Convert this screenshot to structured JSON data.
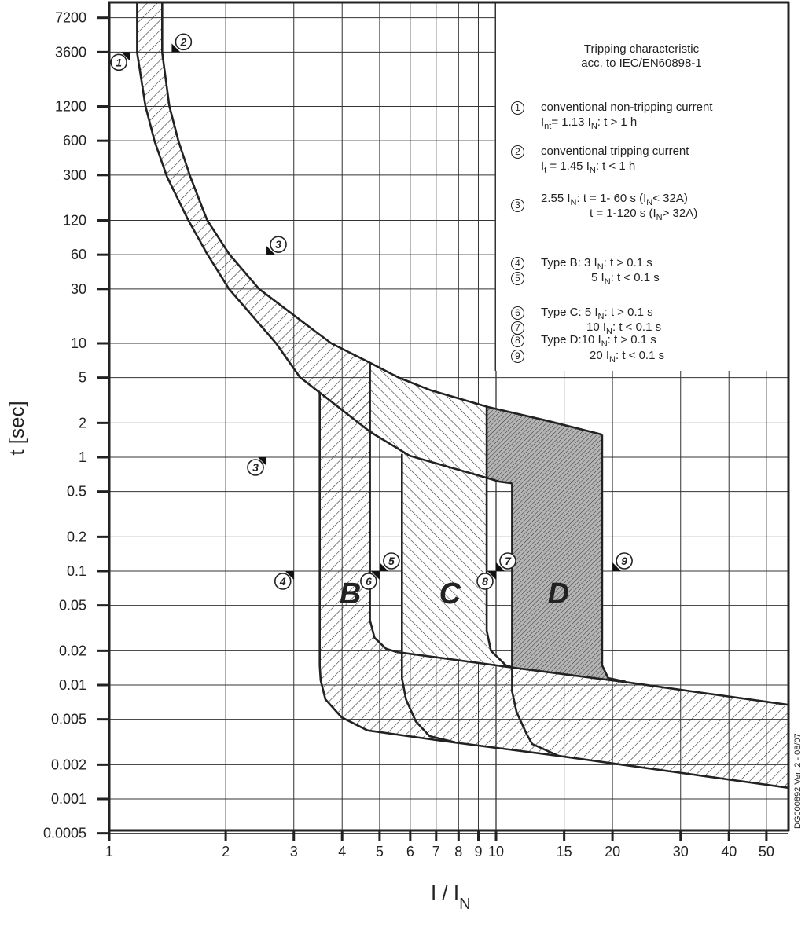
{
  "chart_data": {
    "type": "area",
    "x_scale": "log",
    "y_scale": "log",
    "xlabel": "I / I",
    "xlabel_sub": "N",
    "ylabel": "t [sec]",
    "xlim": [
      1,
      57
    ],
    "ylim": [
      0.0004,
      10000
    ],
    "grid": true,
    "x_ticks": [
      {
        "v": 1,
        "label": "1"
      },
      {
        "v": 2,
        "label": "2"
      },
      {
        "v": 3,
        "label": "3"
      },
      {
        "v": 4,
        "label": "4"
      },
      {
        "v": 5,
        "label": "5"
      },
      {
        "v": 6,
        "label": "6"
      },
      {
        "v": 7,
        "label": "7"
      },
      {
        "v": 8,
        "label": "8"
      },
      {
        "v": 9,
        "label": "9"
      },
      {
        "v": 10,
        "label": "10"
      },
      {
        "v": 15,
        "label": "15"
      },
      {
        "v": 20,
        "label": "20"
      },
      {
        "v": 30,
        "label": "30"
      },
      {
        "v": 40,
        "label": "40"
      },
      {
        "v": 50,
        "label": "50"
      }
    ],
    "y_ticks": [
      {
        "v": 7200,
        "label": "7200"
      },
      {
        "v": 3600,
        "label": "3600"
      },
      {
        "v": 1200,
        "label": "1200"
      },
      {
        "v": 600,
        "label": "600"
      },
      {
        "v": 300,
        "label": "300"
      },
      {
        "v": 120,
        "label": "120"
      },
      {
        "v": 60,
        "label": "60"
      },
      {
        "v": 30,
        "label": "30"
      },
      {
        "v": 10,
        "label": "10"
      },
      {
        "v": 5,
        "label": "5"
      },
      {
        "v": 2,
        "label": "2"
      },
      {
        "v": 1,
        "label": "1"
      },
      {
        "v": 0.5,
        "label": "0.5"
      },
      {
        "v": 0.2,
        "label": "0.2"
      },
      {
        "v": 0.1,
        "label": "0.1"
      },
      {
        "v": 0.05,
        "label": "0.05"
      },
      {
        "v": 0.02,
        "label": "0.02"
      },
      {
        "v": 0.01,
        "label": "0.01"
      },
      {
        "v": 0.005,
        "label": "0.005"
      },
      {
        "v": 0.002,
        "label": "0.002"
      },
      {
        "v": 0.001,
        "label": "0.001"
      },
      {
        "v": 0.0005,
        "label": "0.0005"
      }
    ],
    "regions": [
      {
        "name": "thermal-band",
        "pattern": "fwd",
        "points": [
          [
            1.18,
            12000
          ],
          [
            1.18,
            3560
          ],
          [
            1.24,
            1210
          ],
          [
            1.31,
            592
          ],
          [
            1.41,
            290
          ],
          [
            1.6,
            121
          ],
          [
            1.79,
            61
          ],
          [
            2.04,
            30
          ],
          [
            2.7,
            10
          ],
          [
            3.11,
            5.05
          ],
          [
            4.74,
            1.66
          ],
          [
            5.98,
            1.03
          ],
          [
            9.46,
            0.66
          ],
          [
            9.55,
            2.76
          ],
          [
            6.79,
            3.86
          ],
          [
            4.74,
            6.7
          ],
          [
            3.75,
            10
          ],
          [
            3.37,
            13.1
          ],
          [
            2.44,
            30
          ],
          [
            2.04,
            61
          ],
          [
            1.79,
            121
          ],
          [
            1.62,
            290
          ],
          [
            1.51,
            592
          ],
          [
            1.43,
            1210
          ],
          [
            1.37,
            3560
          ],
          [
            1.37,
            12000
          ]
        ]
      },
      {
        "name": "type-b-and-magnetic-band",
        "pattern": "fwd",
        "points": [
          [
            3.5,
            3.68
          ],
          [
            4.72,
            3.68
          ],
          [
            4.72,
            0.037
          ],
          [
            4.85,
            0.026
          ],
          [
            5.2,
            0.0208
          ],
          [
            5.53,
            0.0195
          ],
          [
            11.1,
            0.0142
          ],
          [
            21.2,
            0.0107
          ],
          [
            57.1,
            0.0067
          ],
          [
            57.1,
            0.00125
          ],
          [
            14.5,
            0.00239
          ],
          [
            7.25,
            0.00324
          ],
          [
            4.65,
            0.004
          ],
          [
            3.99,
            0.0052
          ],
          [
            3.62,
            0.0075
          ],
          [
            3.52,
            0.011
          ],
          [
            3.5,
            0.0149
          ]
        ]
      },
      {
        "name": "type-c-region",
        "pattern": "back",
        "points": [
          [
            4.72,
            6.7
          ],
          [
            5.6,
            5.0
          ],
          [
            6.79,
            3.86
          ],
          [
            9.46,
            2.78
          ],
          [
            9.46,
            0.03
          ],
          [
            9.7,
            0.02
          ],
          [
            10.6,
            0.0149
          ],
          [
            11.1,
            0.0142
          ],
          [
            5.71,
            0.0193
          ],
          [
            5.71,
            1.07
          ],
          [
            4.74,
            1.66
          ]
        ]
      },
      {
        "name": "type-d-region",
        "pattern": "dense",
        "points": [
          [
            9.46,
            2.78
          ],
          [
            13.5,
            2.1
          ],
          [
            18.8,
            1.58
          ],
          [
            18.8,
            0.0149
          ],
          [
            19.5,
            0.0115
          ],
          [
            21.2,
            0.0107
          ],
          [
            11.0,
            0.0142
          ],
          [
            11.0,
            0.59
          ],
          [
            9.46,
            0.66
          ]
        ]
      }
    ],
    "curves": [
      {
        "name": "thermal-lower-curve",
        "points": [
          [
            1.18,
            12000
          ],
          [
            1.18,
            3560
          ],
          [
            1.24,
            1210
          ],
          [
            1.31,
            592
          ],
          [
            1.41,
            290
          ],
          [
            1.6,
            121
          ],
          [
            1.79,
            61
          ],
          [
            2.04,
            30
          ],
          [
            2.7,
            10
          ],
          [
            3.11,
            5.05
          ],
          [
            4.74,
            1.66
          ],
          [
            5.98,
            1.03
          ],
          [
            9.46,
            0.66
          ],
          [
            10.2,
            0.61
          ],
          [
            11.0,
            0.59
          ]
        ]
      },
      {
        "name": "thermal-upper-curve",
        "points": [
          [
            1.37,
            12000
          ],
          [
            1.37,
            3560
          ],
          [
            1.43,
            1210
          ],
          [
            1.51,
            592
          ],
          [
            1.62,
            290
          ],
          [
            1.79,
            121
          ],
          [
            2.04,
            61
          ],
          [
            2.44,
            30
          ],
          [
            3.37,
            13.1
          ],
          [
            3.75,
            10
          ],
          [
            4.74,
            6.7
          ],
          [
            5.6,
            5.0
          ],
          [
            6.79,
            3.86
          ],
          [
            9.55,
            2.76
          ],
          [
            13.5,
            2.1
          ],
          [
            18.8,
            1.58
          ]
        ]
      },
      {
        "name": "type-b-outer-curve",
        "points": [
          [
            3.5,
            3.68
          ],
          [
            3.5,
            0.0149
          ],
          [
            3.52,
            0.011
          ],
          [
            3.62,
            0.0075
          ],
          [
            3.99,
            0.0052
          ],
          [
            4.65,
            0.004
          ]
        ]
      },
      {
        "name": "type-b-inner-curve",
        "points": [
          [
            4.72,
            6.7
          ],
          [
            4.72,
            0.037
          ],
          [
            4.85,
            0.026
          ],
          [
            5.2,
            0.0208
          ],
          [
            5.53,
            0.0195
          ]
        ]
      },
      {
        "name": "type-c-outer-curve",
        "points": [
          [
            5.71,
            1.07
          ],
          [
            5.71,
            0.0115
          ],
          [
            5.85,
            0.0075
          ],
          [
            6.2,
            0.0048
          ],
          [
            6.73,
            0.00356
          ],
          [
            7.84,
            0.00314
          ]
        ]
      },
      {
        "name": "type-c-inner-curve",
        "points": [
          [
            9.46,
            2.78
          ],
          [
            9.46,
            0.03
          ],
          [
            9.7,
            0.02
          ],
          [
            10.6,
            0.0149
          ],
          [
            11.1,
            0.0142
          ]
        ]
      },
      {
        "name": "type-d-outer-curve",
        "points": [
          [
            11.0,
            0.59
          ],
          [
            11.0,
            0.0088
          ],
          [
            11.3,
            0.0058
          ],
          [
            12.0,
            0.0037
          ],
          [
            12.4,
            0.00304
          ],
          [
            14.5,
            0.00239
          ]
        ]
      },
      {
        "name": "type-d-inner-curve",
        "points": [
          [
            18.8,
            1.58
          ],
          [
            18.8,
            0.0149
          ],
          [
            19.5,
            0.0115
          ],
          [
            21.6,
            0.0107
          ]
        ]
      },
      {
        "name": "magnetic-upper-line",
        "points": [
          [
            5.53,
            0.0195
          ],
          [
            11.1,
            0.0142
          ],
          [
            21.2,
            0.0107
          ],
          [
            57.1,
            0.0067
          ]
        ]
      },
      {
        "name": "magnetic-lower-line",
        "points": [
          [
            4.65,
            0.004
          ],
          [
            7.25,
            0.00324
          ],
          [
            14.5,
            0.00239
          ],
          [
            57.1,
            0.00125
          ]
        ]
      }
    ],
    "region_labels": [
      {
        "text": "B",
        "at": [
          4.2,
          0.065
        ]
      },
      {
        "text": "C",
        "at": [
          7.6,
          0.065
        ]
      },
      {
        "text": "D",
        "at": [
          14.5,
          0.065
        ]
      }
    ],
    "markers": [
      {
        "num": "1",
        "at": [
          1.13,
          3600
        ],
        "dir": "dl"
      },
      {
        "num": "2",
        "at": [
          1.45,
          3600
        ],
        "dir": "ur"
      },
      {
        "num": "3",
        "at": [
          2.55,
          60
        ],
        "dir": "ur"
      },
      {
        "num": "3",
        "at": [
          2.55,
          1
        ],
        "dir": "dl"
      },
      {
        "num": "4",
        "at": [
          3,
          0.1
        ],
        "dir": "dl"
      },
      {
        "num": "5",
        "at": [
          5,
          0.1
        ],
        "dir": "ur"
      },
      {
        "num": "6",
        "at": [
          5,
          0.1
        ],
        "dir": "dl"
      },
      {
        "num": "7",
        "at": [
          10,
          0.1
        ],
        "dir": "ur"
      },
      {
        "num": "8",
        "at": [
          10,
          0.1
        ],
        "dir": "dl"
      },
      {
        "num": "9",
        "at": [
          20,
          0.1
        ],
        "dir": "ur"
      }
    ],
    "colors": {
      "line": "#222222",
      "grid": "#333333",
      "type_d_fill": "#a8a8a8",
      "background": "#ffffff"
    }
  },
  "legend": {
    "title_line1": "Tripping characteristic",
    "title_line2": "acc. to IEC/EN60898-1",
    "items": [
      {
        "num": "1",
        "lines": [
          [
            "conventional non-tripping current"
          ],
          [
            "I",
            "nt",
            "= 1.13 I",
            "N",
            ": t > 1 h"
          ]
        ]
      },
      {
        "num": "2",
        "lines": [
          [
            "conventional tripping current"
          ],
          [
            "I",
            "t",
            " = 1.45 I",
            "N",
            ": t < 1 h"
          ]
        ]
      },
      {
        "num": "3",
        "lines": [
          [
            "2.55 I",
            "N",
            ": t = 1- 60 s (I",
            "N",
            "< 32A)"
          ],
          [
            "t = 1-120 s (I",
            "N",
            "> 32A)"
          ]
        ]
      },
      {
        "num": "4",
        "lines": [
          [
            "Type B: 3 I",
            "N",
            ": t > 0.1 s"
          ]
        ]
      },
      {
        "num": "5",
        "lines": [
          [
            "5 I",
            "N",
            ": t < 0.1 s"
          ]
        ]
      },
      {
        "num": "6",
        "lines": [
          [
            "Type C: 5 I",
            "N",
            ": t > 0.1 s"
          ]
        ]
      },
      {
        "num": "7",
        "lines": [
          [
            "10 I",
            "N",
            ": t < 0.1 s"
          ]
        ]
      },
      {
        "num": "8",
        "lines": [
          [
            "Type D:10 I",
            "N",
            ": t > 0.1 s"
          ]
        ]
      },
      {
        "num": "9",
        "lines": [
          [
            "20 I",
            "N",
            ": t < 0.1 s"
          ]
        ]
      }
    ]
  },
  "watermark": "DG000892 Ver. 2 - 08/07"
}
